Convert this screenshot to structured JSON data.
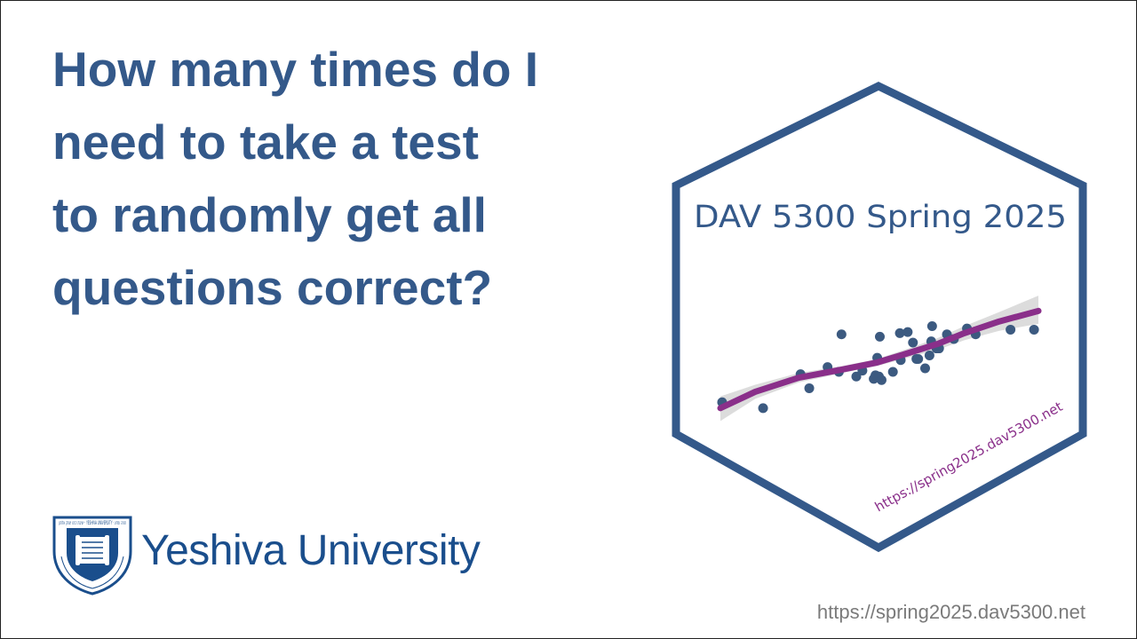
{
  "slide": {
    "title_lines": [
      "How many times do I",
      "need to take a test",
      "to randomly get all",
      "questions correct?"
    ],
    "footer_url": "https://spring2025.dav5300.net"
  },
  "logo": {
    "wordmark": "Yeshiva University",
    "seal_text": "ישיבת רבינו יצחק אלחנן · YESHIVA UNIVERSITY · תורה ומדע"
  },
  "hex_sticker": {
    "title": "DAV 5300 Spring 2025",
    "url": "https://spring2025.dav5300.net",
    "colors": {
      "border": "#34598a",
      "point": "#3c5a80",
      "trend": "#8a2f8a",
      "band": "#d6d6d6",
      "url_text": "#8a2f8a"
    },
    "chart_data": {
      "type": "scatter",
      "points": [
        [
          -8,
          21
        ],
        [
          39,
          16
        ],
        [
          82,
          45
        ],
        [
          92,
          33
        ],
        [
          113,
          51
        ],
        [
          126,
          47
        ],
        [
          129,
          79
        ],
        [
          146,
          43
        ],
        [
          153,
          48
        ],
        [
          166,
          41
        ],
        [
          168,
          44
        ],
        [
          170,
          59
        ],
        [
          172,
          43
        ],
        [
          175,
          40
        ],
        [
          173,
          77
        ],
        [
          188,
          47
        ],
        [
          196,
          80
        ],
        [
          197,
          57
        ],
        [
          205,
          81
        ],
        [
          211,
          72
        ],
        [
          215,
          58
        ],
        [
          217,
          58
        ],
        [
          225,
          50
        ],
        [
          230,
          61
        ],
        [
          232,
          73
        ],
        [
          233,
          86
        ],
        [
          238,
          67
        ],
        [
          241,
          67
        ],
        [
          250,
          79
        ],
        [
          258,
          75
        ],
        [
          273,
          84
        ],
        [
          283,
          79
        ],
        [
          323,
          83
        ],
        [
          350,
          83
        ]
      ],
      "trend_line": [
        [
          -10,
          16
        ],
        [
          30,
          30
        ],
        [
          80,
          42
        ],
        [
          130,
          49
        ],
        [
          170,
          55
        ],
        [
          210,
          64
        ],
        [
          240,
          71
        ],
        [
          270,
          80
        ],
        [
          310,
          90
        ],
        [
          355,
          99
        ]
      ],
      "band_upper": [
        [
          -10,
          26
        ],
        [
          30,
          36
        ],
        [
          80,
          46
        ],
        [
          130,
          52
        ],
        [
          170,
          58
        ],
        [
          210,
          68
        ],
        [
          240,
          76
        ],
        [
          270,
          86
        ],
        [
          310,
          98
        ],
        [
          355,
          112
        ]
      ],
      "band_lower": [
        [
          -10,
          5
        ],
        [
          30,
          24
        ],
        [
          80,
          38
        ],
        [
          130,
          46
        ],
        [
          170,
          52
        ],
        [
          210,
          60
        ],
        [
          240,
          66
        ],
        [
          270,
          74
        ],
        [
          310,
          82
        ],
        [
          355,
          88
        ]
      ],
      "xlim": [
        -10,
        355
      ],
      "ylim": [
        0,
        125
      ]
    }
  }
}
